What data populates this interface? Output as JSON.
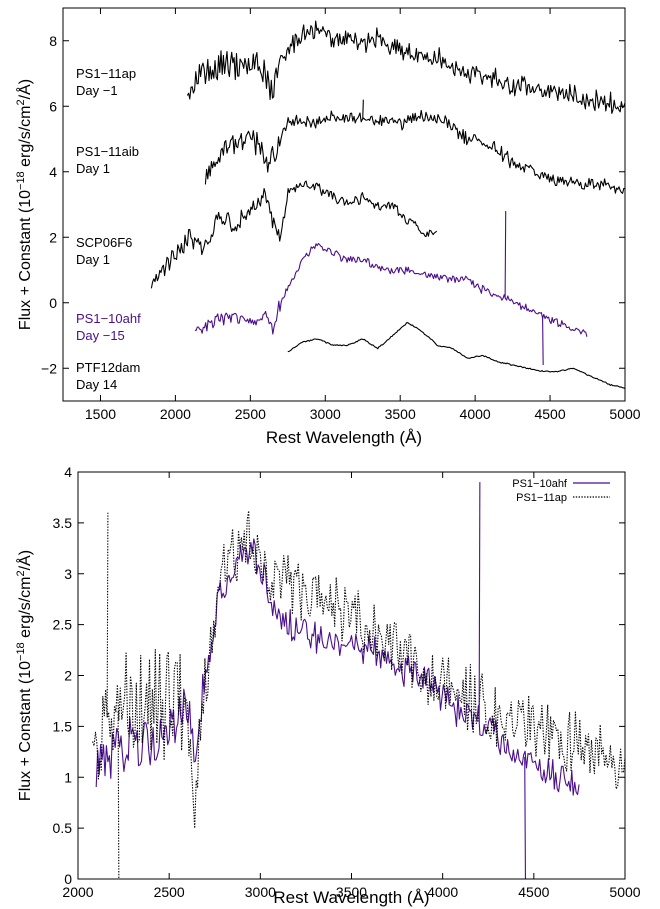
{
  "chart_data": [
    {
      "type": "line",
      "xlabel": "Rest Wavelength (Å)",
      "ylabel": "Flux + Constant (10",
      "ylabel_sup": "−18",
      "ylabel_tail": " erg/s/cm",
      "ylabel_sup2": "2",
      "ylabel_end": "/Å)",
      "xlim": [
        1250,
        5000
      ],
      "ylim": [
        -3,
        9
      ],
      "xticks": [
        "1500",
        "2000",
        "2500",
        "3000",
        "3500",
        "4000",
        "4500",
        "5000"
      ],
      "xtick_values": [
        1500,
        2000,
        2500,
        3000,
        3500,
        4000,
        4500,
        5000
      ],
      "yticks": [
        "−2",
        "0",
        "2",
        "4",
        "6",
        "8"
      ],
      "ytick_values": [
        -2,
        0,
        2,
        4,
        6,
        8
      ],
      "grid": false,
      "colors": {
        "black": "#000000",
        "purple": "#4b0f8c"
      },
      "series": [
        {
          "name": "PS1−11ap",
          "day": "Day −1",
          "color": "#000000",
          "noise": 0.9,
          "x": [
            2080,
            2150,
            2300,
            2450,
            2550,
            2650,
            2700,
            2780,
            2850,
            2950,
            3050,
            3150,
            3250,
            3350,
            3450,
            3550,
            3650,
            3750,
            3850,
            4000,
            4150,
            4300,
            4450,
            4600,
            4800,
            5000
          ],
          "y": [
            6.6,
            7.0,
            7.1,
            7.3,
            7.4,
            6.3,
            7.2,
            7.9,
            8.2,
            8.3,
            8.0,
            8.1,
            7.9,
            8.1,
            7.8,
            7.7,
            7.6,
            7.5,
            7.2,
            7.0,
            6.8,
            6.6,
            6.5,
            6.4,
            6.2,
            6.0
          ]
        },
        {
          "name": "PS1−11aib",
          "day": "Day 1",
          "color": "#000000",
          "noise": 0.6,
          "x": [
            2200,
            2300,
            2450,
            2550,
            2620,
            2680,
            2750,
            2850,
            2950,
            3050,
            3200,
            3350,
            3500,
            3650,
            3800,
            3950,
            4100,
            4250,
            4400,
            4550,
            4700,
            4850,
            5000
          ],
          "y": [
            3.8,
            4.6,
            5.0,
            4.9,
            4.2,
            4.7,
            5.5,
            5.6,
            5.5,
            5.7,
            5.6,
            5.6,
            5.5,
            5.7,
            5.6,
            5.0,
            4.8,
            4.3,
            4.0,
            3.7,
            3.6,
            3.6,
            3.3
          ]
        },
        {
          "name": "SCP06F6",
          "day": "Day 1",
          "color": "#000000",
          "noise": 0.5,
          "x": [
            1840,
            1900,
            2000,
            2100,
            2200,
            2300,
            2400,
            2500,
            2600,
            2700,
            2750,
            2850,
            2950,
            3050,
            3150,
            3250,
            3350,
            3450,
            3550,
            3650,
            3750
          ],
          "y": [
            0.6,
            1.0,
            1.5,
            2.0,
            1.6,
            2.7,
            2.3,
            2.8,
            3.2,
            1.8,
            3.4,
            3.6,
            3.5,
            3.3,
            3.0,
            3.2,
            2.9,
            3.0,
            2.5,
            2.2,
            2.1
          ]
        },
        {
          "name": "PS1−10ahf",
          "day": "Day −15",
          "color": "#4b0f8c",
          "noise": 0.35,
          "x": [
            2130,
            2200,
            2300,
            2400,
            2500,
            2600,
            2650,
            2700,
            2780,
            2850,
            2950,
            3050,
            3150,
            3250,
            3350,
            3450,
            3550,
            3650,
            3750,
            3850,
            3950,
            4050,
            4150,
            4250,
            4350,
            4450,
            4550,
            4650,
            4750
          ],
          "y": [
            -0.9,
            -0.7,
            -0.5,
            -0.4,
            -0.5,
            -0.4,
            -0.8,
            0.0,
            0.7,
            1.3,
            1.8,
            1.5,
            1.3,
            1.3,
            1.1,
            1.0,
            1.0,
            0.9,
            0.8,
            0.7,
            0.7,
            0.4,
            0.2,
            0.1,
            -0.2,
            -0.4,
            -0.6,
            -0.8,
            -1.0
          ]
        },
        {
          "name": "PTF12dam",
          "day": "Day 14",
          "color": "#000000",
          "noise": 0.06,
          "x": [
            2750,
            2850,
            2950,
            3050,
            3150,
            3250,
            3350,
            3450,
            3550,
            3650,
            3750,
            3850,
            3950,
            4050,
            4150,
            4250,
            4350,
            4450,
            4550,
            4650,
            4700,
            4800,
            4900,
            5000
          ],
          "y": [
            -1.5,
            -1.2,
            -1.1,
            -1.3,
            -1.3,
            -1.1,
            -1.4,
            -1.0,
            -0.6,
            -0.9,
            -1.3,
            -1.4,
            -1.7,
            -1.6,
            -1.8,
            -1.9,
            -2.0,
            -2.1,
            -2.1,
            -2.0,
            -2.1,
            -2.3,
            -2.5,
            -2.6
          ]
        }
      ],
      "spikes": [
        {
          "series": "PS1−10ahf",
          "x": 4200,
          "y": 2.8
        },
        {
          "series": "PS1−10ahf",
          "x": 4450,
          "y": -1.9
        },
        {
          "series": "PS1−11aib",
          "x": 3250,
          "y": 6.2
        }
      ]
    },
    {
      "type": "line",
      "xlabel": "Rest Wavelength (Å)",
      "ylabel": "Flux + Constant (10",
      "ylabel_sup": "−18",
      "ylabel_tail": " erg/s/cm",
      "ylabel_sup2": "2",
      "ylabel_end": "/Å)",
      "xlim": [
        2000,
        5000
      ],
      "ylim": [
        0,
        4
      ],
      "xticks": [
        "2000",
        "2500",
        "3000",
        "3500",
        "4000",
        "4500",
        "5000"
      ],
      "xtick_values": [
        2000,
        2500,
        3000,
        3500,
        4000,
        4500,
        5000
      ],
      "yticks": [
        "0",
        "0.5",
        "1",
        "1.5",
        "2",
        "2.5",
        "3",
        "3.5",
        "4"
      ],
      "ytick_values": [
        0,
        0.5,
        1,
        1.5,
        2,
        2.5,
        3,
        3.5,
        4
      ],
      "grid": false,
      "legend": "top-right",
      "series": [
        {
          "name": "PS1−10ahf",
          "color": "#4b0f8c",
          "dash": "",
          "noise": 0.45,
          "x": [
            2100,
            2200,
            2300,
            2400,
            2500,
            2600,
            2650,
            2700,
            2780,
            2850,
            2950,
            3050,
            3150,
            3250,
            3350,
            3450,
            3550,
            3650,
            3750,
            3850,
            3950,
            4050,
            4150,
            4250,
            4350,
            4450,
            4550,
            4650,
            4750
          ],
          "y": [
            1.1,
            1.2,
            1.4,
            1.4,
            1.5,
            1.6,
            1.1,
            2.0,
            2.8,
            3.0,
            3.3,
            2.8,
            2.5,
            2.4,
            2.3,
            2.3,
            2.3,
            2.2,
            2.1,
            2.0,
            1.9,
            1.7,
            1.6,
            1.5,
            1.3,
            1.2,
            1.1,
            1.0,
            0.9
          ]
        },
        {
          "name": "PS1−11ap",
          "color": "#000000",
          "dash": "1.4 1.4",
          "noise": 0.9,
          "x": [
            2080,
            2150,
            2300,
            2450,
            2550,
            2650,
            2700,
            2780,
            2850,
            2950,
            3050,
            3150,
            3250,
            3350,
            3450,
            3550,
            3650,
            3750,
            3850,
            4000,
            4150,
            4300,
            4450,
            4600,
            4800,
            5000
          ],
          "y": [
            1.3,
            1.6,
            1.7,
            1.8,
            1.8,
            1.0,
            1.8,
            3.0,
            3.2,
            3.3,
            3.0,
            2.9,
            2.8,
            2.9,
            2.6,
            2.5,
            2.4,
            2.3,
            2.1,
            1.9,
            1.8,
            1.6,
            1.5,
            1.4,
            1.3,
            1.1
          ]
        }
      ],
      "spikes": [
        {
          "series": "PS1−10ahf",
          "x": 4200,
          "y": 3.9
        },
        {
          "series": "PS1−10ahf",
          "x": 4450,
          "y": 0.0
        },
        {
          "series": "PS1−11ap",
          "x": 2160,
          "y": 3.6
        },
        {
          "series": "PS1−11ap",
          "x": 2220,
          "y": 0.0
        }
      ]
    }
  ]
}
